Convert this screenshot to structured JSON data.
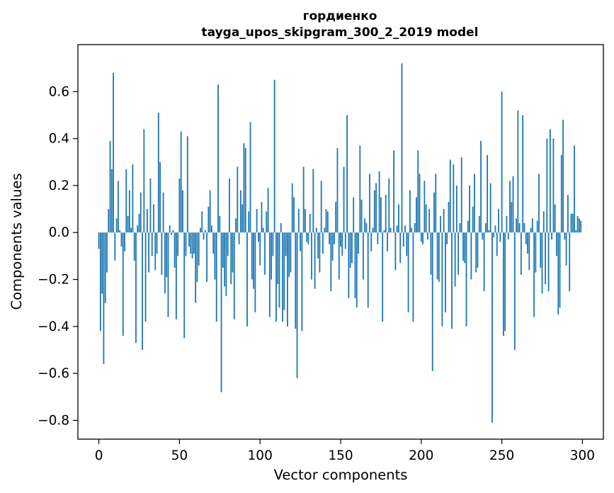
{
  "chart_data": {
    "type": "bar",
    "title": "гордиенко",
    "subtitle": "tayga_upos_skipgram_300_2_2019 model",
    "xlabel": "Vector components",
    "ylabel": "Components values",
    "xlim": [
      -13,
      313
    ],
    "ylim": [
      -0.88,
      0.8
    ],
    "xticks": [
      0,
      50,
      100,
      150,
      200,
      250,
      300
    ],
    "yticks": [
      -0.8,
      -0.6,
      -0.4,
      -0.2,
      0.0,
      0.2,
      0.4,
      0.6
    ],
    "ytick_labels": [
      "−0.8",
      "−0.6",
      "−0.4",
      "−0.2",
      "0.0",
      "0.2",
      "0.4",
      "0.6"
    ],
    "bar_color": "#1f77b4",
    "grid": false,
    "x": "0..299 (component index)",
    "values": [
      -0.07,
      -0.42,
      -0.26,
      -0.56,
      -0.3,
      -0.17,
      0.1,
      0.39,
      0.27,
      0.68,
      -0.12,
      0.06,
      0.22,
      0.01,
      -0.06,
      -0.44,
      -0.08,
      0.27,
      0.07,
      0.18,
      0.02,
      0.29,
      -0.12,
      -0.47,
      0.03,
      0.08,
      0.17,
      -0.5,
      0.44,
      -0.38,
      0.1,
      -0.17,
      0.23,
      -0.1,
      0.12,
      -0.16,
      -0.09,
      0.51,
      0.3,
      -0.18,
      0.17,
      -0.26,
      -0.19,
      -0.36,
      0.03,
      -0.01,
      0.01,
      -0.15,
      -0.37,
      -0.1,
      0.23,
      0.43,
      0.18,
      -0.45,
      -0.1,
      0.41,
      -0.06,
      -0.09,
      -0.11,
      -0.09,
      -0.3,
      -0.21,
      -0.14,
      0.02,
      0.09,
      -0.03,
      0.01,
      -0.21,
      0.11,
      0.18,
      0.03,
      -0.09,
      -0.2,
      -0.38,
      0.63,
      0.07,
      -0.68,
      -0.15,
      -0.23,
      -0.27,
      -0.1,
      0.23,
      -0.22,
      -0.17,
      -0.37,
      0.06,
      0.28,
      -0.05,
      0.18,
      0.12,
      0.38,
      0.36,
      -0.4,
      0.09,
      0.47,
      -0.2,
      -0.24,
      -0.34,
      0.1,
      -0.04,
      -0.14,
      0.13,
      0.02,
      -0.18,
      0.09,
      0.19,
      -0.36,
      -0.2,
      -0.1,
      0.65,
      -0.38,
      -0.22,
      -0.32,
      0.04,
      -0.38,
      -0.33,
      -0.1,
      -0.4,
      -0.19,
      -0.17,
      0.21,
      0.15,
      -0.41,
      -0.62,
      0.1,
      -0.08,
      -0.42,
      0.28,
      0.1,
      -0.04,
      -0.05,
      0.08,
      -0.2,
      0.27,
      -0.24,
      0.02,
      -0.11,
      -0.17,
      0.22,
      -0.09,
      0.02,
      0.1,
      0.09,
      -0.05,
      -0.25,
      -0.12,
      -0.05,
      0.13,
      0.36,
      -0.2,
      -0.06,
      -0.1,
      0.28,
      -0.07,
      0.5,
      -0.28,
      -0.15,
      -0.13,
      0.15,
      -0.28,
      -0.32,
      -0.09,
      0.37,
      0.14,
      -0.2,
      0.06,
      0.04,
      -0.32,
      0.25,
      -0.08,
      0.02,
      0.18,
      0.21,
      -0.05,
      0.26,
      0.15,
      -0.38,
      0.01,
      0.16,
      -0.08,
      0.23,
      0.02,
      0.0,
      0.35,
      -0.16,
      0.03,
      0.12,
      -0.13,
      0.72,
      -0.06,
      0.03,
      -0.1,
      -0.34,
      0.18,
      0.02,
      -0.38,
      0.04,
      0.15,
      0.35,
      0.25,
      -0.04,
      -0.05,
      0.22,
      0.12,
      -0.03,
      0.1,
      -0.18,
      -0.59,
      0.17,
      0.25,
      -0.2,
      -0.21,
      0.07,
      -0.4,
      0.1,
      -0.34,
      -0.05,
      0.13,
      0.31,
      -0.41,
      0.29,
      -0.23,
      0.2,
      -0.18,
      0.04,
      0.32,
      -0.12,
      -0.13,
      -0.4,
      0.05,
      0.2,
      -0.2,
      0.11,
      0.25,
      -0.17,
      -0.15,
      0.07,
      0.39,
      -0.03,
      -0.25,
      0.04,
      0.33,
      0.01,
      0.21,
      -0.81,
      -0.02,
      0.03,
      -0.1,
      0.1,
      -0.04,
      0.6,
      -0.44,
      -0.42,
      0.07,
      -0.03,
      0.22,
      0.13,
      0.24,
      -0.5,
      0.06,
      0.52,
      0.04,
      -0.18,
      0.5,
      0.04,
      -0.05,
      -0.09,
      -0.16,
      0.02,
      0.06,
      -0.36,
      -0.17,
      0.05,
      0.25,
      -0.15,
      -0.26,
      0.09,
      -0.22,
      0.4,
      -0.25,
      0.44,
      -0.03,
      0.4,
      0.12,
      -0.1,
      -0.35,
      -0.32,
      0.33,
      0.48,
      -0.03,
      -0.14,
      0.16,
      -0.25,
      0.08,
      0.08,
      0.37,
      0.01,
      0.07,
      0.06,
      0.05
    ]
  }
}
